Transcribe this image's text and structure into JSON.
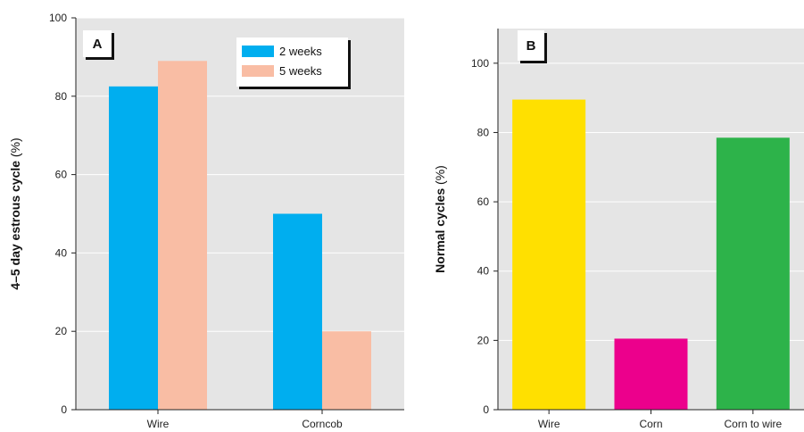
{
  "chart_data": [
    {
      "type": "bar",
      "panel_label": "A",
      "ylabel_main": "4–5 day estrous cycle",
      "ylabel_unit": " (%)",
      "xlabel": "",
      "ylim": [
        0,
        100
      ],
      "yticks": [
        0,
        20,
        40,
        60,
        80,
        100
      ],
      "grid": true,
      "legend_position": "top-right",
      "categories": [
        "Wire",
        "Corncob"
      ],
      "series": [
        {
          "name": "2 weeks",
          "color": "#00AEEF",
          "values": [
            82.5,
            50
          ]
        },
        {
          "name": "5 weeks",
          "color": "#F9BDA4",
          "values": [
            89,
            20
          ]
        }
      ]
    },
    {
      "type": "bar",
      "panel_label": "B",
      "ylabel_main": "Normal cycles",
      "ylabel_unit": " (%)",
      "xlabel": "",
      "ylim": [
        0,
        110
      ],
      "yticks": [
        0,
        20,
        40,
        60,
        80,
        100
      ],
      "grid": true,
      "categories": [
        "Wire",
        "Corn",
        "Corn to wire"
      ],
      "values": [
        89.5,
        20.5,
        78.5
      ],
      "colors": [
        "#FFE000",
        "#EC008C",
        "#2DB34A"
      ]
    }
  ],
  "colors": {
    "plot_background": "#E5E5E5",
    "gridline": "#FFFFFF",
    "axis": "#222222"
  }
}
